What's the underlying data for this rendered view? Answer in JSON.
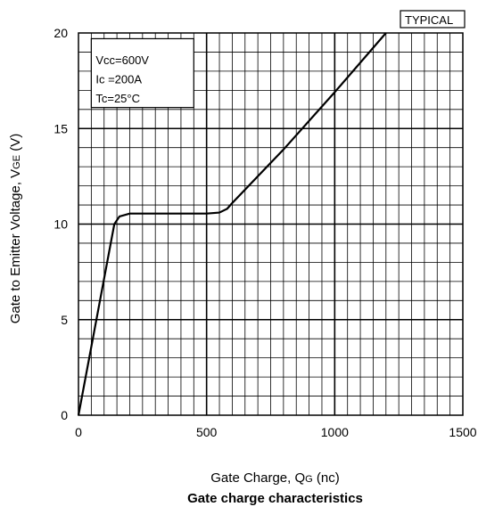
{
  "chart_data": {
    "type": "line",
    "badge": "TYPICAL",
    "conditions": [
      "Vcc=600V",
      "Ic =200A",
      "Tc=25°C"
    ],
    "xlabel": {
      "main": "Gate Charge, Q",
      "sub": "G",
      "unit": " (nc)"
    },
    "ylabel": {
      "main": "Gate to Emitter Voltage, V",
      "sub": "GE",
      "unit": " (V)"
    },
    "caption": "Gate charge characteristics",
    "xlim": [
      0,
      1500
    ],
    "ylim": [
      0,
      20
    ],
    "xticks": [
      0,
      500,
      1000,
      1500
    ],
    "yticks": [
      0,
      5,
      10,
      15,
      20
    ],
    "grid": {
      "x_minor_step": 50,
      "x_major_step": 500,
      "y_minor_step": 1,
      "y_major_step": 5
    },
    "series": [
      {
        "x": [
          0,
          140,
          160,
          200,
          500,
          550,
          580,
          600,
          800,
          1000,
          1200
        ],
        "y": [
          0,
          10.0,
          10.4,
          10.55,
          10.55,
          10.6,
          10.8,
          11.1,
          13.9,
          16.9,
          20.0
        ]
      }
    ]
  }
}
